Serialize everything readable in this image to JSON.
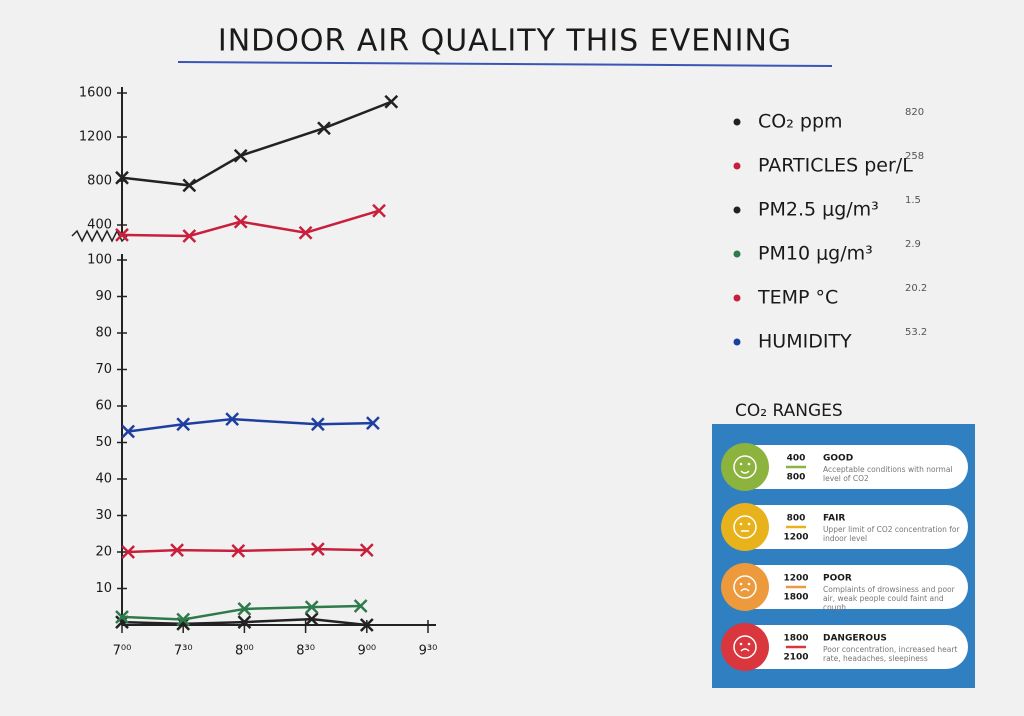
{
  "chart_data": [
    {
      "type": "line",
      "title": "INDOOR AIR QUALITY THIS EVENING",
      "xlim": [
        7,
        9.5
      ],
      "ylim": [
        300,
        1600
      ],
      "yticks": [
        400,
        800,
        1200,
        1600
      ],
      "series": [
        {
          "name": "CO₂ ppm",
          "color": "#222222",
          "current": 820,
          "x": [
            7,
            7.55,
            7.97,
            8.65,
            9.2
          ],
          "values": [
            830,
            760,
            1030,
            1280,
            1520
          ]
        },
        {
          "name": "PARTICLES per/L",
          "color": "#c8203c",
          "current": 258,
          "x": [
            7,
            7.55,
            7.97,
            8.5,
            9.1
          ],
          "values": [
            310,
            300,
            430,
            330,
            530
          ]
        }
      ]
    },
    {
      "type": "line",
      "xlim": [
        7,
        9.5
      ],
      "xticks": [
        {
          "value": 7,
          "label": "7⁰⁰"
        },
        {
          "value": 7.5,
          "label": "7³⁰"
        },
        {
          "value": 8,
          "label": "8⁰⁰"
        },
        {
          "value": 8.5,
          "label": "8³⁰"
        },
        {
          "value": 9,
          "label": "9⁰⁰"
        },
        {
          "value": 9.5,
          "label": "9³⁰"
        }
      ],
      "ylim": [
        0,
        100
      ],
      "yticks": [
        10,
        20,
        30,
        40,
        50,
        60,
        70,
        80,
        90,
        100
      ],
      "series": [
        {
          "name": "PM2.5 μg/m³",
          "color": "#222222",
          "current": 1.5,
          "x": [
            7,
            7.5,
            8,
            8.55,
            9.0
          ],
          "values": [
            0.8,
            0.3,
            0.8,
            1.6,
            0
          ]
        },
        {
          "name": "PM10 μg/m³",
          "color": "#2e7a4a",
          "current": 2.9,
          "x": [
            7,
            7.5,
            8,
            8.55,
            8.95
          ],
          "values": [
            2.2,
            1.5,
            4.4,
            4.9,
            5.2
          ]
        },
        {
          "name": "TEMP °C",
          "color": "#c8203c",
          "current": 20.2,
          "x": [
            7.05,
            7.45,
            7.95,
            8.6,
            9.0
          ],
          "values": [
            20,
            20.5,
            20.3,
            20.8,
            20.5
          ]
        },
        {
          "name": "HUMIDITY",
          "color": "#1f3fa0",
          "current": 53.2,
          "x": [
            7.05,
            7.5,
            7.9,
            8.6,
            9.05
          ],
          "values": [
            53,
            55,
            56.4,
            55,
            55.3
          ]
        }
      ]
    }
  ],
  "co2_ranges": {
    "title": "CO₂ RANGES",
    "rows": [
      {
        "low": "400",
        "high": "800",
        "level": "GOOD",
        "text": "Acceptable conditions with normal level of CO2",
        "color": "#8bb33e"
      },
      {
        "low": "800",
        "high": "1200",
        "level": "FAIR",
        "text": "Upper limit of CO2 concentration for indoor level",
        "color": "#e8b21c"
      },
      {
        "low": "1200",
        "high": "1800",
        "level": "POOR",
        "text": "Complaints of drowsiness and poor air, weak people could faint and cough",
        "color": "#ec9a3c"
      },
      {
        "low": "1800",
        "high": "2100",
        "level": "DANGEROUS",
        "text": "Poor concentration, increased heart rate, headaches, sleepiness",
        "color": "#d9363e"
      }
    ]
  }
}
